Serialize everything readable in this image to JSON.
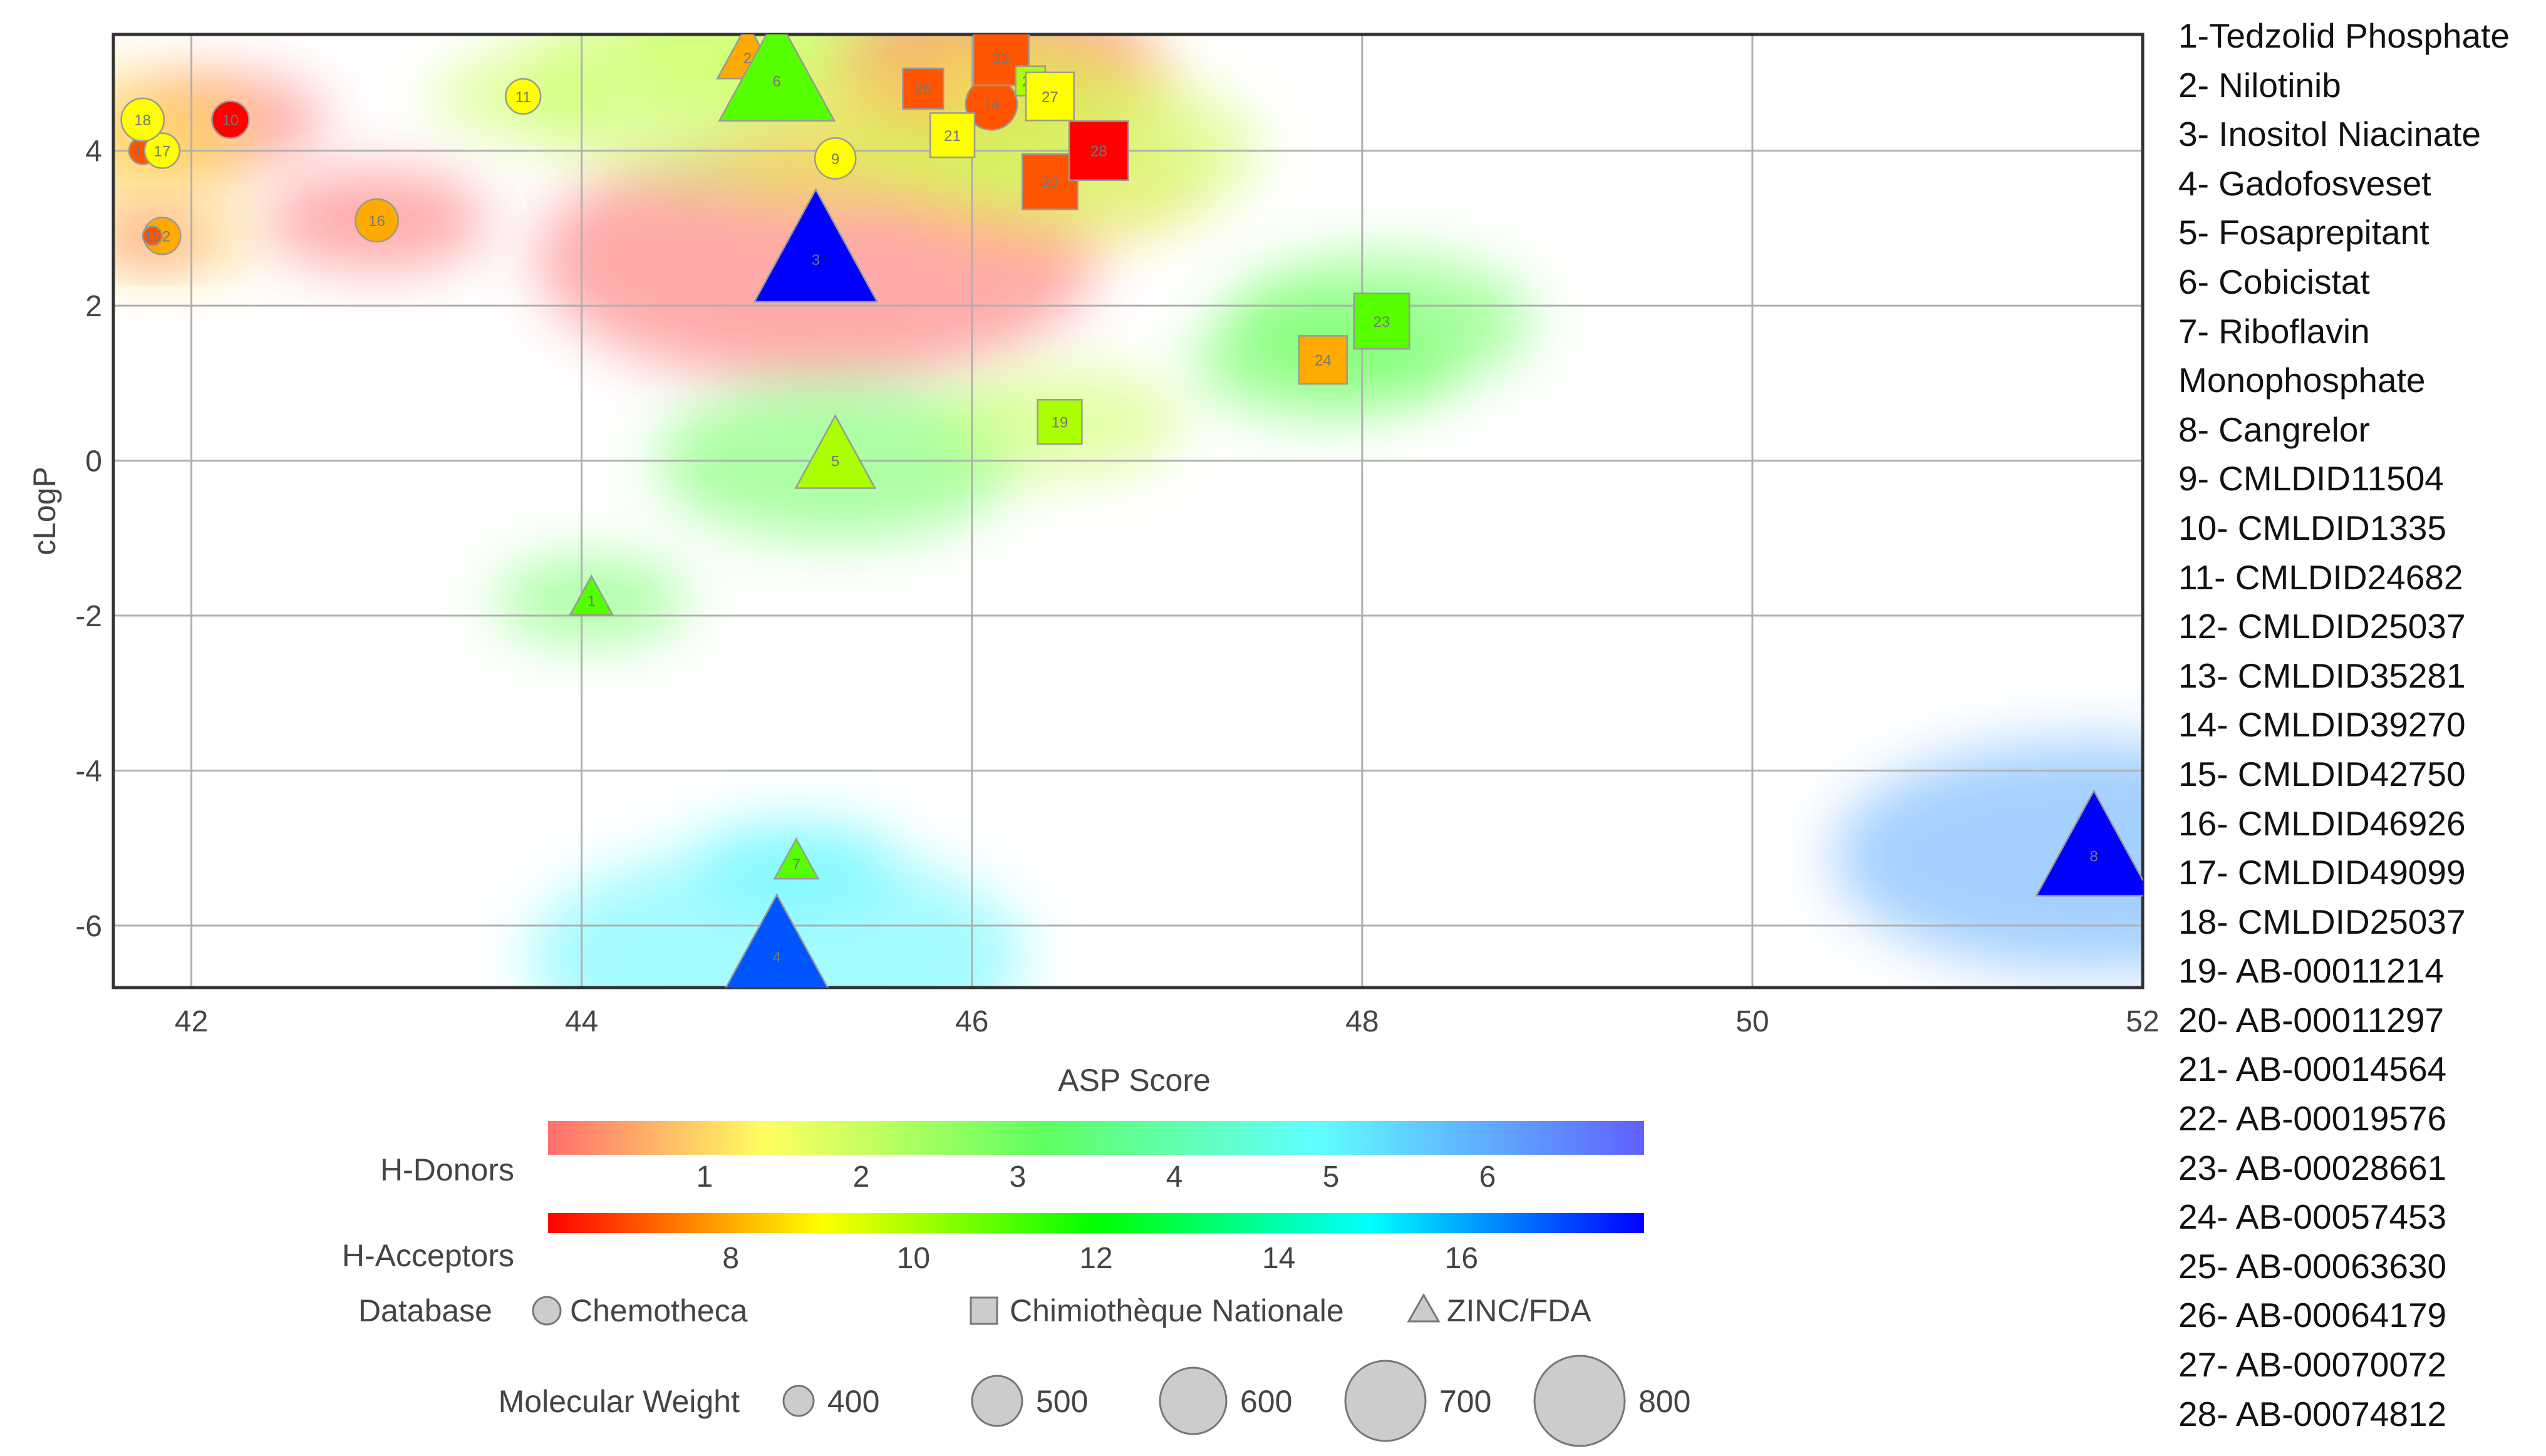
{
  "chart_data": {
    "type": "scatter",
    "xlabel": "ASP Score",
    "ylabel": "cLogP",
    "xlim": [
      41.6,
      52
    ],
    "ylim": [
      -6.8,
      5.5
    ],
    "xticks": [
      42,
      44,
      46,
      48,
      50,
      52
    ],
    "yticks": [
      4,
      2,
      0,
      -2,
      -4,
      -6
    ],
    "grid": true,
    "points": [
      {
        "id": "1",
        "name": "Tedzolid Phosphate",
        "x": 44.05,
        "y": -1.8,
        "db": "ZINC/FDA",
        "donors": 3,
        "acceptors": 11,
        "mw": 450
      },
      {
        "id": "2",
        "name": "Nilotinib",
        "x": 44.85,
        "y": 5.2,
        "db": "ZINC/FDA",
        "donors": 2,
        "acceptors": 8,
        "mw": 530
      },
      {
        "id": "3",
        "name": "Inositol Niacinate",
        "x": 45.2,
        "y": 2.6,
        "db": "ZINC/FDA",
        "donors": 0,
        "acceptors": 18,
        "mw": 810
      },
      {
        "id": "4",
        "name": "Gadofosveset",
        "x": 45.0,
        "y": -6.4,
        "db": "ZINC/FDA",
        "donors": 5,
        "acceptors": 17,
        "mw": 750
      },
      {
        "id": "5",
        "name": "Fosaprepitant",
        "x": 45.3,
        "y": 0.0,
        "db": "ZINC/FDA",
        "donors": 3,
        "acceptors": 10,
        "mw": 615
      },
      {
        "id": "6",
        "name": "Cobicistat",
        "x": 45.0,
        "y": 4.9,
        "db": "ZINC/FDA",
        "donors": 2,
        "acceptors": 11,
        "mw": 775
      },
      {
        "id": "7",
        "name": "Riboflavin Monophosphate",
        "x": 45.1,
        "y": -5.2,
        "db": "ZINC/FDA",
        "donors": 5,
        "acceptors": 11,
        "mw": 455
      },
      {
        "id": "8",
        "name": "Cangrelor",
        "x": 51.75,
        "y": -5.1,
        "db": "ZINC/FDA",
        "donors": 6,
        "acceptors": 18,
        "mw": 775
      },
      {
        "id": "9",
        "name": "CMLDID11504",
        "x": 45.3,
        "y": 3.9,
        "db": "Chemotheca",
        "donors": 1,
        "acceptors": 9,
        "mw": 470
      },
      {
        "id": "10",
        "name": "CMLDID1335",
        "x": 42.2,
        "y": 4.4,
        "db": "Chemotheca",
        "donors": 0,
        "acceptors": 6,
        "mw": 450
      },
      {
        "id": "11",
        "name": "CMLDID24682",
        "x": 43.7,
        "y": 4.7,
        "db": "Chemotheca",
        "donors": 2,
        "acceptors": 9,
        "mw": 440
      },
      {
        "id": "12",
        "name": "CMLDID25037",
        "x": 41.85,
        "y": 2.9,
        "db": "Chemotheca",
        "donors": 1,
        "acceptors": 8,
        "mw": 450
      },
      {
        "id": "13",
        "name": "CMLDID35281",
        "x": 41.75,
        "y": 4.0,
        "db": "Chemotheca",
        "donors": 1,
        "acceptors": 7,
        "mw": 400
      },
      {
        "id": "14",
        "name": "CMLDID39270",
        "x": 46.1,
        "y": 4.6,
        "db": "Chemotheca",
        "donors": 2,
        "acceptors": 7,
        "mw": 525
      },
      {
        "id": "15",
        "name": "CMLDID42750",
        "x": 41.8,
        "y": 2.9,
        "db": "Chemotheca",
        "donors": 0,
        "acceptors": 7,
        "mw": 360
      },
      {
        "id": "16",
        "name": "CMLDID46926",
        "x": 42.95,
        "y": 3.1,
        "db": "Chemotheca",
        "donors": 0,
        "acceptors": 8,
        "mw": 480
      },
      {
        "id": "17",
        "name": "CMLDID49099",
        "x": 41.85,
        "y": 4.0,
        "db": "Chemotheca",
        "donors": 1,
        "acceptors": 9,
        "mw": 440
      },
      {
        "id": "18",
        "name": "CMLDID25037",
        "x": 41.75,
        "y": 4.4,
        "db": "Chemotheca",
        "donors": 1,
        "acceptors": 9,
        "mw": 480
      },
      {
        "id": "19",
        "name": "AB-00011214",
        "x": 46.45,
        "y": 0.5,
        "db": "Chimiotheque Nationale",
        "donors": 2,
        "acceptors": 10,
        "mw": 500
      },
      {
        "id": "20",
        "name": "AB-00011297",
        "x": 46.4,
        "y": 3.6,
        "db": "Chimiotheque Nationale",
        "donors": 1,
        "acceptors": 7,
        "mw": 560
      },
      {
        "id": "21",
        "name": "AB-00014564",
        "x": 45.9,
        "y": 4.2,
        "db": "Chimiotheque Nationale",
        "donors": 2,
        "acceptors": 9,
        "mw": 500
      },
      {
        "id": "22",
        "name": "AB-00019576",
        "x": 46.15,
        "y": 5.2,
        "db": "Chimiotheque Nationale",
        "donors": 0,
        "acceptors": 7,
        "mw": 560
      },
      {
        "id": "23",
        "name": "AB-00028661",
        "x": 48.1,
        "y": 1.8,
        "db": "Chimiotheque Nationale",
        "donors": 3,
        "acceptors": 11,
        "mw": 560
      },
      {
        "id": "24",
        "name": "AB-00057453",
        "x": 47.8,
        "y": 1.3,
        "db": "Chimiotheque Nationale",
        "donors": 3,
        "acceptors": 8,
        "mw": 520
      },
      {
        "id": "25",
        "name": "AB-00063630",
        "x": 46.3,
        "y": 4.9,
        "db": "Chimiotheque Nationale",
        "donors": 2,
        "acceptors": 10,
        "mw": 420
      },
      {
        "id": "26",
        "name": "AB-00064179",
        "x": 45.75,
        "y": 4.8,
        "db": "Chimiotheque Nationale",
        "donors": 1,
        "acceptors": 7,
        "mw": 480
      },
      {
        "id": "27",
        "name": "AB-00070072",
        "x": 46.4,
        "y": 4.7,
        "db": "Chimiotheque Nationale",
        "donors": 1,
        "acceptors": 9,
        "mw": 520
      },
      {
        "id": "28",
        "name": "AB-00074812",
        "x": 46.65,
        "y": 4.0,
        "db": "Chimiotheque Nationale",
        "donors": 2,
        "acceptors": 6,
        "mw": 580
      }
    ],
    "legend": {
      "donors": {
        "label": "H-Donors",
        "ticks": [
          1,
          2,
          3,
          4,
          5,
          6
        ]
      },
      "acceptors": {
        "label": "H-Acceptors",
        "ticks": [
          8,
          10,
          12,
          14,
          16
        ]
      },
      "database": {
        "label": "Database",
        "items": [
          "Chemotheca",
          "Chimiothèque Nationale",
          "ZINC/FDA"
        ]
      },
      "mw": {
        "label": "Molecular Weight",
        "values": [
          400,
          500,
          600,
          700,
          800
        ]
      }
    },
    "compound_list": [
      "1-Tedzolid Phosphate",
      "2- Nilotinib",
      "3- Inositol Niacinate",
      "4- Gadofosveset",
      "5- Fosaprepitant",
      "6- Cobicistat",
      "7- Riboflavin",
      "Monophosphate",
      "8- Cangrelor",
      "9- CMLDID11504",
      "10- CMLDID1335",
      "11- CMLDID24682",
      "12- CMLDID25037",
      "13- CMLDID35281",
      "14- CMLDID39270",
      "15- CMLDID42750",
      "16- CMLDID46926",
      "17- CMLDID49099",
      "18- CMLDID25037",
      "19- AB-00011214",
      "20- AB-00011297",
      "21- AB-00014564",
      "22- AB-00019576",
      "23- AB-00028661",
      "24- AB-00057453",
      "25- AB-00063630",
      "26- AB-00064179",
      "27- AB-00070072",
      "28- AB-00074812"
    ],
    "colors": {
      "grid": "#b0b0b0",
      "axis": "#333333",
      "marker_edge": "#999999",
      "legend_marker_fill": "#cccccc"
    }
  }
}
